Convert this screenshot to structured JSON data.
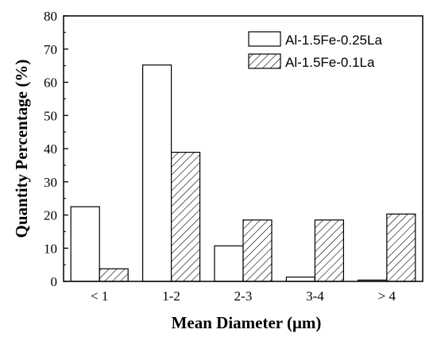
{
  "chart_data": {
    "type": "bar",
    "categories": [
      "< 1",
      "1-2",
      "2-3",
      "3-4",
      "> 4"
    ],
    "series": [
      {
        "name": "Al-1.5Fe-0.25La",
        "values": [
          22.5,
          65.2,
          10.7,
          1.3,
          0.4
        ],
        "fill": "none"
      },
      {
        "name": "Al-1.5Fe-0.1La",
        "values": [
          3.8,
          38.9,
          18.5,
          18.5,
          20.3
        ],
        "fill": "hatch"
      }
    ],
    "xlabel": "Mean Diameter (μm)",
    "ylabel": "Quantity Percentage (%)",
    "ylim": [
      0,
      80
    ],
    "yticks": [
      0,
      10,
      20,
      30,
      40,
      50,
      60,
      70,
      80
    ],
    "grid": false,
    "legend_position": "top-right"
  }
}
